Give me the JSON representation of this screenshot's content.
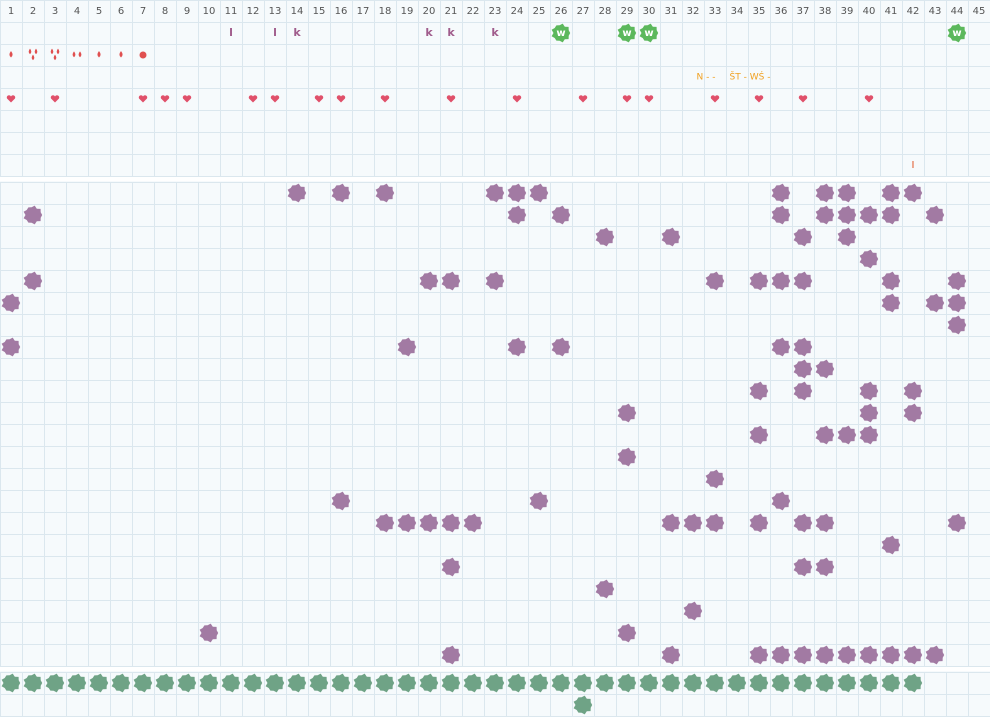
{
  "columns": [
    1,
    2,
    3,
    4,
    5,
    6,
    7,
    8,
    9,
    10,
    11,
    12,
    13,
    14,
    15,
    16,
    17,
    18,
    19,
    20,
    21,
    22,
    23,
    24,
    25,
    26,
    27,
    28,
    29,
    30,
    31,
    32,
    33,
    34,
    35,
    36,
    37,
    38,
    39,
    40,
    41,
    42,
    43,
    44,
    45
  ],
  "letters": [
    {
      "col": 11,
      "text": "l"
    },
    {
      "col": 13,
      "text": "l"
    },
    {
      "col": 14,
      "text": "k"
    },
    {
      "col": 20,
      "text": "k"
    },
    {
      "col": 21,
      "text": "k"
    },
    {
      "col": 23,
      "text": "k"
    }
  ],
  "badges": [
    {
      "col": 26,
      "text": "w"
    },
    {
      "col": 29,
      "text": "w"
    },
    {
      "col": 30,
      "text": "w"
    },
    {
      "col": 44,
      "text": "w"
    }
  ],
  "drops": [
    {
      "col": 1,
      "count": 1
    },
    {
      "col": 2,
      "count": 3
    },
    {
      "col": 3,
      "count": 3
    },
    {
      "col": 4,
      "count": 2
    },
    {
      "col": 5,
      "count": 1
    },
    {
      "col": 6,
      "count": 1
    },
    {
      "col": 7,
      "count": 1
    }
  ],
  "notes": [
    {
      "col": 33,
      "text": "N - -"
    },
    {
      "col": 35,
      "text": "ŠT - WŚ -"
    }
  ],
  "hearts": [
    1,
    3,
    7,
    8,
    9,
    12,
    13,
    15,
    16,
    18,
    21,
    24,
    27,
    29,
    30,
    33,
    35,
    37,
    40
  ],
  "markers": [
    {
      "col": 42,
      "text": "I"
    }
  ],
  "purple_rows": [
    [
      14,
      16,
      18,
      23,
      24,
      25,
      36,
      38,
      39,
      41,
      42
    ],
    [
      2,
      24,
      26,
      36,
      38,
      39,
      40,
      41,
      43
    ],
    [
      28,
      31,
      37,
      39
    ],
    [
      40
    ],
    [
      2,
      20,
      21,
      23,
      33,
      35,
      36,
      37,
      41,
      44
    ],
    [
      1,
      41,
      43,
      44
    ],
    [
      44
    ],
    [
      1,
      19,
      24,
      26,
      36,
      37
    ],
    [
      37,
      38
    ],
    [
      35,
      37,
      40,
      42
    ],
    [
      29,
      40,
      42
    ],
    [
      35,
      38,
      39,
      40
    ],
    [
      29
    ],
    [
      33
    ],
    [
      16,
      25,
      36
    ],
    [
      18,
      19,
      20,
      21,
      22,
      31,
      32,
      33,
      35,
      37,
      38,
      44
    ],
    [
      41
    ],
    [
      21,
      37,
      38
    ],
    [
      28
    ],
    [
      32
    ],
    [
      10,
      29
    ],
    [
      21,
      31,
      35,
      36,
      37,
      38,
      39,
      40,
      41,
      42,
      43
    ]
  ],
  "green_rows": [
    [
      1,
      2,
      3,
      4,
      5,
      6,
      7,
      8,
      9,
      10,
      11,
      12,
      13,
      14,
      15,
      16,
      17,
      18,
      19,
      20,
      21,
      22,
      23,
      24,
      25,
      26,
      27,
      28,
      29,
      30,
      31,
      32,
      33,
      34,
      35,
      36,
      37,
      38,
      39,
      40,
      41,
      42
    ],
    [
      27
    ]
  ]
}
